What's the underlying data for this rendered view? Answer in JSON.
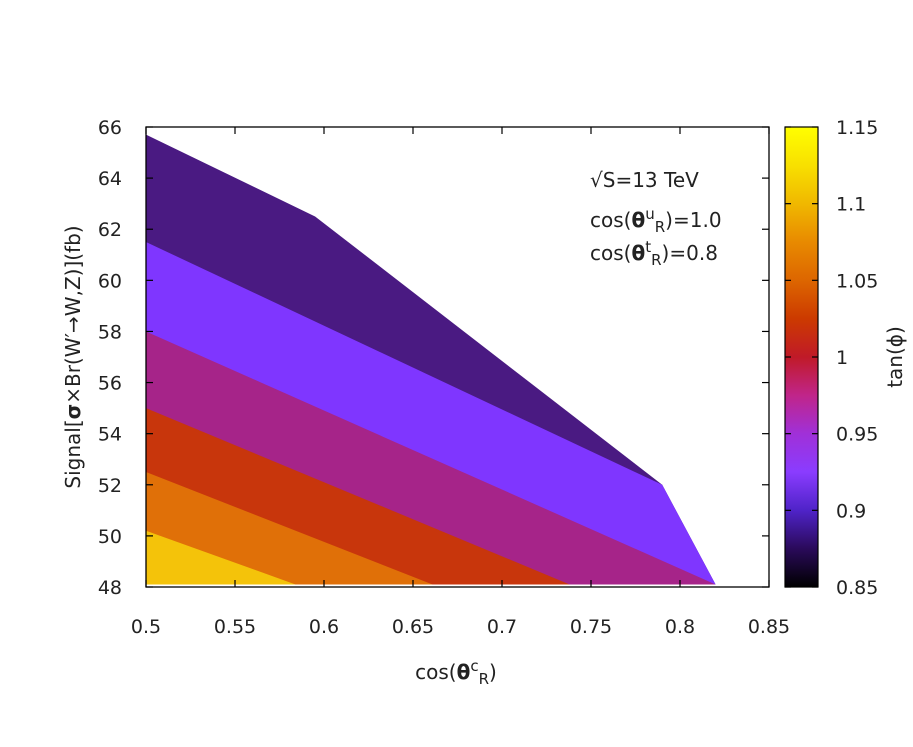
{
  "chart_data": {
    "type": "heatmap",
    "title": "",
    "xlabel": "cos(θcR)",
    "ylabel": "Signal[σ×Br(W′→W,Z)](fb)",
    "xlim": [
      0.5,
      0.85
    ],
    "ylim": [
      48,
      66
    ],
    "x_ticks": [
      "0.5",
      "0.55",
      "0.6",
      "0.65",
      "0.7",
      "0.75",
      "0.8",
      "0.85"
    ],
    "y_ticks": [
      "48",
      "50",
      "52",
      "54",
      "56",
      "58",
      "60",
      "62",
      "64",
      "66"
    ],
    "colorbar": {
      "label": "tan(ϕ)",
      "range": [
        0.85,
        1.15
      ],
      "ticks": [
        "0.85",
        "0.9",
        "0.95",
        "1",
        "1.05",
        "1.1",
        "1.15"
      ],
      "stops": [
        {
          "value": 0.85,
          "color": "#000000"
        },
        {
          "value": 0.875,
          "color": "#2a0a5a"
        },
        {
          "value": 0.9,
          "color": "#4f23c8"
        },
        {
          "value": 0.925,
          "color": "#8a3cff"
        },
        {
          "value": 0.95,
          "color": "#a030d8"
        },
        {
          "value": 0.975,
          "color": "#c0258a"
        },
        {
          "value": 1.0,
          "color": "#c01a28"
        },
        {
          "value": 1.025,
          "color": "#cc3a00"
        },
        {
          "value": 1.05,
          "color": "#dd6600"
        },
        {
          "value": 1.075,
          "color": "#e88a00"
        },
        {
          "value": 1.1,
          "color": "#f0b800"
        },
        {
          "value": 1.125,
          "color": "#f8e000"
        },
        {
          "value": 1.15,
          "color": "#ffff00"
        }
      ]
    },
    "region": {
      "upper_boundary": [
        [
          0.5,
          65.7
        ],
        [
          0.595,
          62.5
        ],
        [
          0.79,
          52.0
        ],
        [
          0.82,
          48.1
        ]
      ],
      "lower_boundary_y": 48.1
    },
    "bands": [
      {
        "tan_phi": 0.875,
        "color": "#4a1a82",
        "lower_boundary": [
          [
            0.5,
            61.5
          ],
          [
            0.79,
            52.0
          ],
          [
            0.82,
            48.1
          ]
        ]
      },
      {
        "tan_phi": 0.925,
        "color": "#7f36ff",
        "lower_boundary": [
          [
            0.5,
            58.0
          ],
          [
            0.82,
            48.1
          ]
        ]
      },
      {
        "tan_phi": 0.975,
        "color": "#a62489",
        "lower_boundary": [
          [
            0.5,
            55.0
          ],
          [
            0.738,
            48.1
          ]
        ]
      },
      {
        "tan_phi": 1.025,
        "color": "#c8360c",
        "lower_boundary": [
          [
            0.5,
            52.5
          ],
          [
            0.661,
            48.1
          ]
        ]
      },
      {
        "tan_phi": 1.075,
        "color": "#e07008",
        "lower_boundary": [
          [
            0.5,
            50.2
          ],
          [
            0.584,
            48.1
          ]
        ]
      },
      {
        "tan_phi": 1.125,
        "color": "#f4c30a",
        "lower_boundary": [
          [
            0.5,
            48.1
          ],
          [
            0.584,
            48.1
          ]
        ]
      }
    ],
    "annotations": [
      {
        "text": "√S=13 TeV",
        "x": 0.752,
        "y": 64.2
      },
      {
        "text": "cos(θuR)=1.0",
        "x": 0.752,
        "y": 62.4
      },
      {
        "text": "cos(θtR)=0.8",
        "x": 0.752,
        "y": 60.9
      }
    ]
  }
}
